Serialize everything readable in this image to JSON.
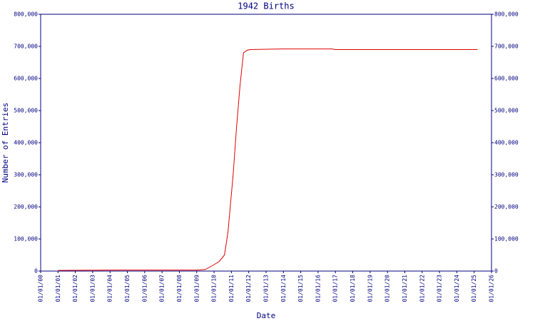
{
  "chart_data": {
    "type": "line",
    "title": "1942 Births",
    "xlabel": "Date",
    "ylabel": "Number of Entries",
    "xlim": [
      0,
      26
    ],
    "xticks": [
      {
        "value": 0,
        "label": "01/01/00"
      },
      {
        "value": 1,
        "label": "01/01/01"
      },
      {
        "value": 2,
        "label": "01/01/02"
      },
      {
        "value": 3,
        "label": "01/01/03"
      },
      {
        "value": 4,
        "label": "01/01/04"
      },
      {
        "value": 5,
        "label": "01/01/05"
      },
      {
        "value": 6,
        "label": "01/01/06"
      },
      {
        "value": 7,
        "label": "01/01/07"
      },
      {
        "value": 8,
        "label": "01/01/08"
      },
      {
        "value": 9,
        "label": "01/01/09"
      },
      {
        "value": 10,
        "label": "01/01/10"
      },
      {
        "value": 11,
        "label": "01/01/11"
      },
      {
        "value": 12,
        "label": "01/01/12"
      },
      {
        "value": 13,
        "label": "01/01/13"
      },
      {
        "value": 14,
        "label": "01/01/14"
      },
      {
        "value": 15,
        "label": "01/01/15"
      },
      {
        "value": 16,
        "label": "01/01/16"
      },
      {
        "value": 17,
        "label": "01/01/17"
      },
      {
        "value": 18,
        "label": "01/01/18"
      },
      {
        "value": 19,
        "label": "01/01/19"
      },
      {
        "value": 20,
        "label": "01/01/20"
      },
      {
        "value": 21,
        "label": "01/01/21"
      },
      {
        "value": 22,
        "label": "01/01/22"
      },
      {
        "value": 23,
        "label": "01/01/23"
      },
      {
        "value": 24,
        "label": "01/01/24"
      },
      {
        "value": 25,
        "label": "01/01/25"
      },
      {
        "value": 26,
        "label": "01/01/26"
      }
    ],
    "ylim": [
      0,
      800000
    ],
    "yticks": [
      0,
      {
        "value": 100000,
        "label": "100,000"
      },
      {
        "value": 200000,
        "label": "200,000"
      },
      {
        "value": 300000,
        "label": "300,000"
      },
      {
        "value": 400000,
        "label": "400,000"
      },
      {
        "value": 500000,
        "label": "500,000"
      },
      {
        "value": 600000,
        "label": "600,000"
      },
      {
        "value": 700000,
        "label": "700,000"
      },
      {
        "value": 800000,
        "label": "800,000"
      }
    ],
    "y2lim": [
      0,
      800000
    ],
    "y2ticks": [
      0,
      {
        "value": 100000,
        "label": "100,000"
      },
      {
        "value": 200000,
        "label": "200,000"
      },
      {
        "value": 300000,
        "label": "300,000"
      },
      {
        "value": 400000,
        "label": "400,000"
      },
      {
        "value": 500000,
        "label": "500,000"
      },
      {
        "value": 600000,
        "label": "600,000"
      },
      {
        "value": 700000,
        "label": "700,000"
      },
      {
        "value": 800000,
        "label": "800,000"
      }
    ],
    "series": [
      {
        "color": "#e00000",
        "x": [
          1,
          4,
          9,
          9.5,
          10,
          10.3,
          10.6,
          10.8,
          11.1,
          11.3,
          11.5,
          11.7,
          11.9,
          12.1,
          14,
          16.8,
          17,
          25.2
        ],
        "values": [
          2000,
          3000,
          3000,
          5000,
          20000,
          30000,
          50000,
          120000,
          300000,
          450000,
          580000,
          680000,
          688000,
          690000,
          692000,
          692000,
          690000,
          690000
        ]
      }
    ]
  }
}
